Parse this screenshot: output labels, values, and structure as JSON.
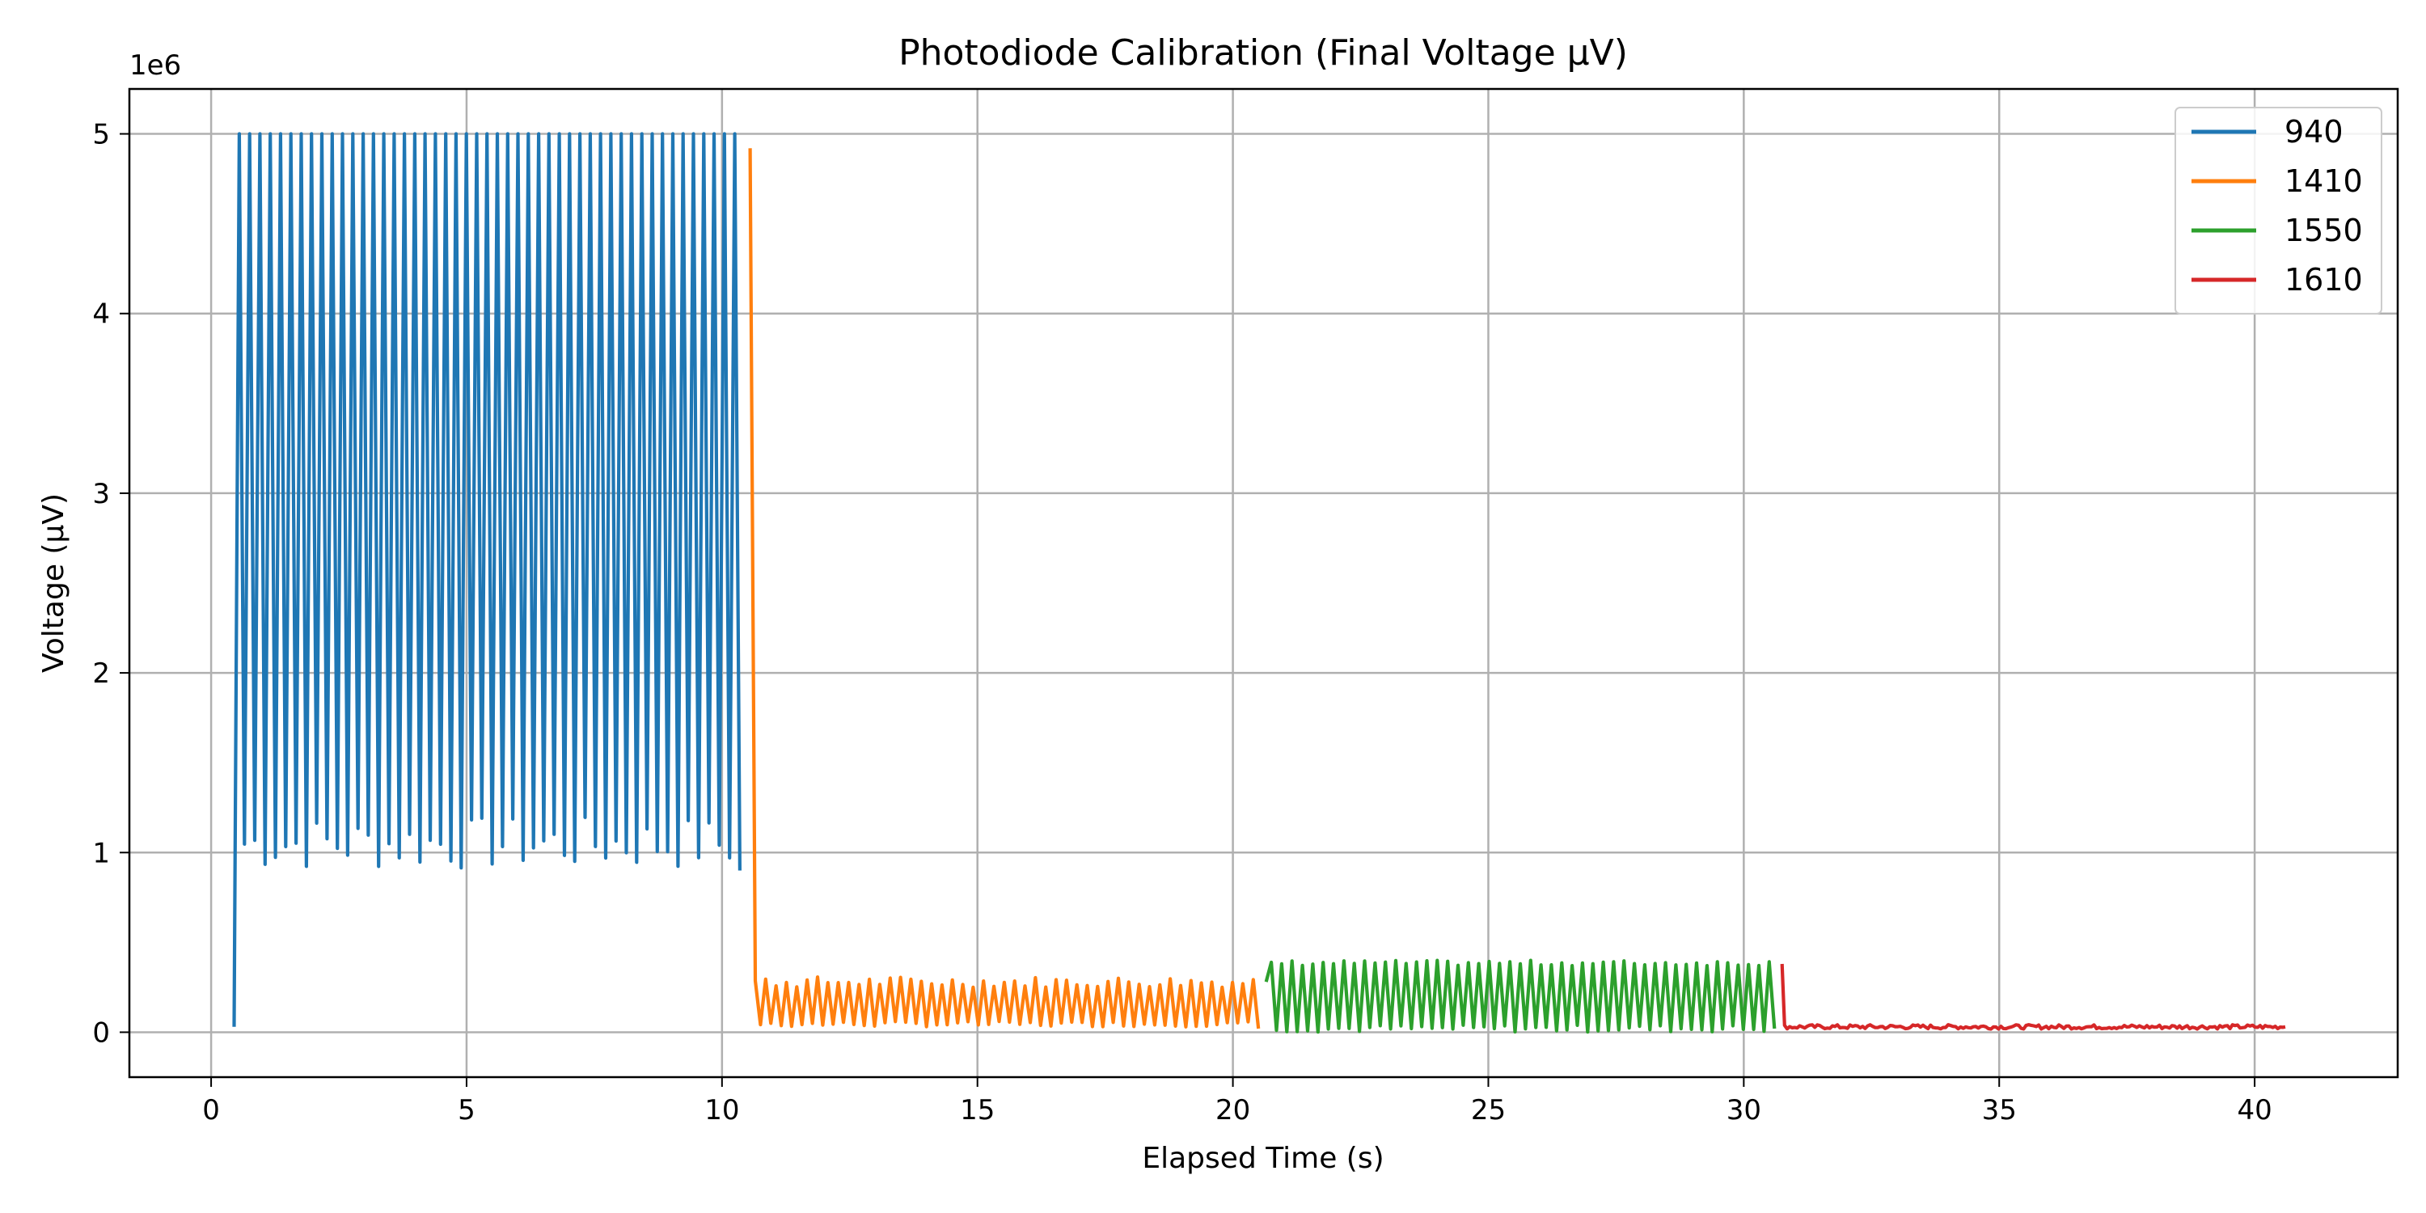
{
  "chart_data": {
    "type": "line",
    "title": "Photodiode Calibration (Final Voltage µV)",
    "xlabel": "Elapsed Time (s)",
    "ylabel": "Voltage (µV)",
    "y_offset_text": "1e6",
    "xlim": [
      -1.6,
      42.8
    ],
    "ylim": [
      -0.25,
      5.25
    ],
    "x_ticks": [
      0,
      5,
      10,
      15,
      20,
      25,
      30,
      35,
      40
    ],
    "x_tick_labels": [
      "0",
      "5",
      "10",
      "15",
      "20",
      "25",
      "30",
      "35",
      "40"
    ],
    "y_ticks": [
      0,
      1,
      2,
      3,
      4,
      5
    ],
    "y_tick_labels": [
      "0",
      "1",
      "2",
      "3",
      "4",
      "5"
    ],
    "y_scale_note": "values in units of 1e6 µV",
    "grid": true,
    "legend_position": "top-right",
    "series": [
      {
        "name": "940",
        "color": "#1f77b4",
        "x_start": 0.45,
        "x_end": 10.35,
        "first_y": 0.03,
        "peak_y": 5.0,
        "trough_y_range": [
          0.9,
          1.2
        ],
        "cycles": 49,
        "last_y": 0.9
      },
      {
        "name": "1410",
        "color": "#ff7f0e",
        "x_start": 10.55,
        "x_end": 20.5,
        "first_y": 4.92,
        "peak_y_range": [
          0.25,
          0.31
        ],
        "trough_y_range": [
          0.03,
          0.06
        ],
        "cycles": 49,
        "last_y": 0.02
      },
      {
        "name": "1550",
        "color": "#2ca02c",
        "x_start": 20.65,
        "x_end": 30.6,
        "first_y": 0.28,
        "peak_y_range": [
          0.37,
          0.4
        ],
        "trough_y_range": [
          0.0,
          0.04
        ],
        "cycles": 49,
        "last_y": 0.02
      },
      {
        "name": "1610",
        "color": "#d62728",
        "x_start": 30.75,
        "x_end": 40.6,
        "first_y": 0.38,
        "level_y": 0.03,
        "noise_amplitude": 0.012,
        "last_y": 0.03
      }
    ]
  }
}
